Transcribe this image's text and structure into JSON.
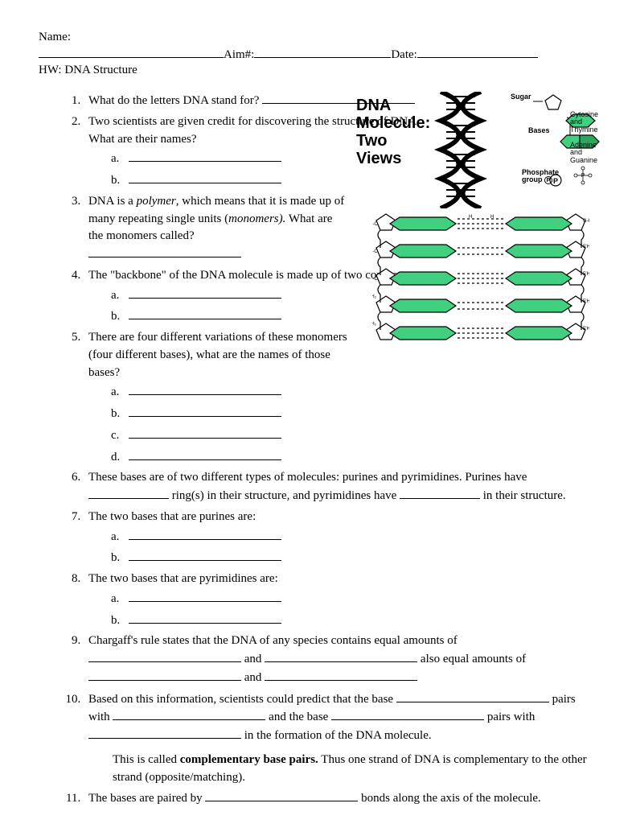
{
  "header": {
    "name_label": "Name:",
    "aim_label": "Aim#:",
    "date_label": "Date:",
    "hw_label": "HW: DNA Structure"
  },
  "figure": {
    "title_line1": "DNA",
    "title_line2": "Molecule:",
    "title_line3": "Two",
    "title_line4": "Views",
    "sugar_label": "Sugar",
    "ct_label": "Cytosine and\nThymine",
    "bases_label": "Bases",
    "ag_label": "Adenine and\nGuanine",
    "phosphate_label": "Phosphate\ngroup",
    "phosphate_symbol": "P",
    "colors": {
      "base_green": "#40d080",
      "base_green_dark": "#2aa860",
      "pentagon_fill": "#ffffff",
      "stroke": "#000000"
    }
  },
  "questions": {
    "q1": "What do the letters DNA stand for?",
    "q2_a": "Two scientists are given credit for discovering the structure of DNA.",
    "q2_b": "What are their names?",
    "q3_a": "DNA is a ",
    "q3_b": "polymer",
    "q3_c": ", which means that it is made up of many repeating single units (",
    "q3_d": "monomers).",
    "q3_e": "  What are the monomers called?",
    "q4": "The \"backbone\" of the DNA molecule is made up of two components:",
    "q5_a": "There are four different variations of these monomers",
    "q5_b": "(four different bases), what are the names of those bases?",
    "q6_a": "These bases are of two different types of molecules:  purines and pyrimidines.  Purines have",
    "q6_b": " ring(s) in their structure, and pyrimidines have ",
    "q6_c": " in their structure.",
    "q7": "The two bases that are purines are:",
    "q8": "The two bases that are pyrimidines are:",
    "q9_a": "Chargaff's rule states that the DNA of any species contains equal amounts of",
    "q9_b": " and ",
    "q9_c": " also equal amounts of",
    "q9_d": " and ",
    "q10_a": "Based on this information, scientists could predict that the base ",
    "q10_b": " pairs",
    "q10_c": "with ",
    "q10_d": " and the base ",
    "q10_e": " pairs with",
    "q10_f": " in the formation of the DNA molecule.",
    "q10_g": "This is called ",
    "q10_h": "complementary base pairs.",
    "q10_i": "  Thus one strand of DNA is complementary to the other strand    (opposite/matching).",
    "q11_a": "The bases are paired by ",
    "q11_b": " bonds along the axis of the molecule.",
    "sub_a": "a.",
    "sub_b": "b.",
    "sub_c": "c.",
    "sub_d": "d."
  }
}
